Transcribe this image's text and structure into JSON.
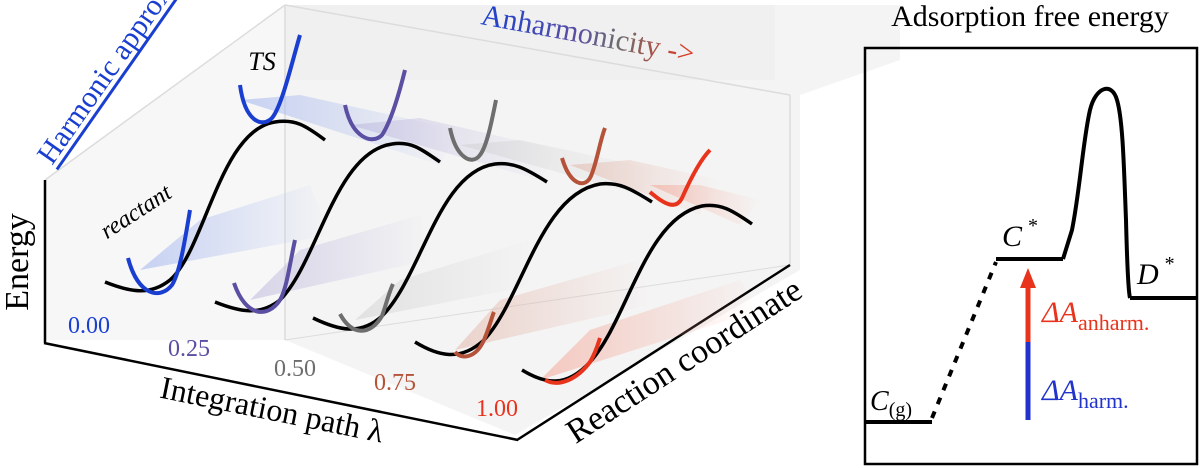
{
  "left_panel": {
    "axis_energy": "Energy",
    "axis_path": "Integration path λ",
    "axis_reaction": "Reaction coordinate",
    "label_reactant": "reactant",
    "label_ts": "TS",
    "header_harmonic": "Harmonic approx.",
    "header_anharmonicity": "Anharmonicity ->",
    "lambda_values": [
      {
        "label": "0.00",
        "color": "#1a3fd0"
      },
      {
        "label": "0.25",
        "color": "#5a4fa2"
      },
      {
        "label": "0.50",
        "color": "#6e6e6e"
      },
      {
        "label": "0.75",
        "color": "#b5533a"
      },
      {
        "label": "1.00",
        "color": "#e8341c"
      }
    ],
    "colors": {
      "curve": "#000000",
      "harmonic": "#1a3fd0",
      "anharmonic": "#e8341c"
    }
  },
  "right_panel": {
    "title": "Adsorption free energy",
    "state_gas": "C",
    "state_gas_sub": "(g)",
    "state_c": "C",
    "state_c_sup": "*",
    "state_d": "D",
    "state_d_sup": "*",
    "delta": "ΔA",
    "anharm_sub": "anharm.",
    "harm_sub": "harm.",
    "colors": {
      "anharm": "#e8341c",
      "harm": "#2233cc",
      "line": "#000000"
    }
  }
}
